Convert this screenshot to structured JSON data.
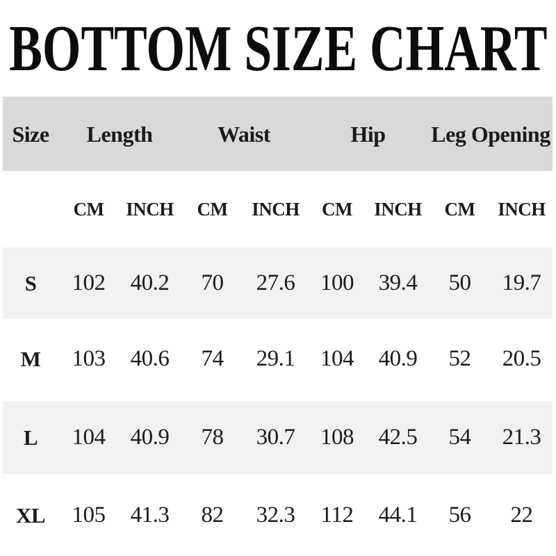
{
  "title": "BOTTOM SIZE CHART",
  "table": {
    "group_headers": [
      "Size",
      "Length",
      "Waist",
      "Hip",
      "Leg Opening"
    ],
    "unit_headers": [
      "CM",
      "INCH",
      "CM",
      "INCH",
      "CM",
      "INCH",
      "CM",
      "INCH"
    ],
    "rows": [
      {
        "size": "S",
        "values": [
          "102",
          "40.2",
          "70",
          "27.6",
          "100",
          "39.4",
          "50",
          "19.7"
        ]
      },
      {
        "size": "M",
        "values": [
          "103",
          "40.6",
          "74",
          "29.1",
          "104",
          "40.9",
          "52",
          "20.5"
        ]
      },
      {
        "size": "L",
        "values": [
          "104",
          "40.9",
          "78",
          "30.7",
          "108",
          "42.5",
          "54",
          "21.3"
        ]
      },
      {
        "size": "XL",
        "values": [
          "105",
          "41.3",
          "82",
          "32.3",
          "112",
          "44.1",
          "56",
          "22"
        ]
      }
    ]
  },
  "chart_data": {
    "type": "table",
    "title": "BOTTOM SIZE CHART",
    "columns": [
      "Size",
      "Length CM",
      "Length INCH",
      "Waist CM",
      "Waist INCH",
      "Hip CM",
      "Hip INCH",
      "Leg Opening CM",
      "Leg Opening INCH"
    ],
    "rows": [
      [
        "S",
        102,
        40.2,
        70,
        27.6,
        100,
        39.4,
        50,
        19.7
      ],
      [
        "M",
        103,
        40.6,
        74,
        29.1,
        104,
        40.9,
        52,
        20.5
      ],
      [
        "L",
        104,
        40.9,
        78,
        30.7,
        108,
        42.5,
        54,
        21.3
      ],
      [
        "XL",
        105,
        41.3,
        82,
        32.3,
        112,
        44.1,
        56,
        22
      ]
    ]
  },
  "colors": {
    "background": "#ffffff",
    "header_row_bg": "#d9d9d9",
    "striped_row_bg": "#f1f1f1",
    "text": "#1b1b1b"
  }
}
